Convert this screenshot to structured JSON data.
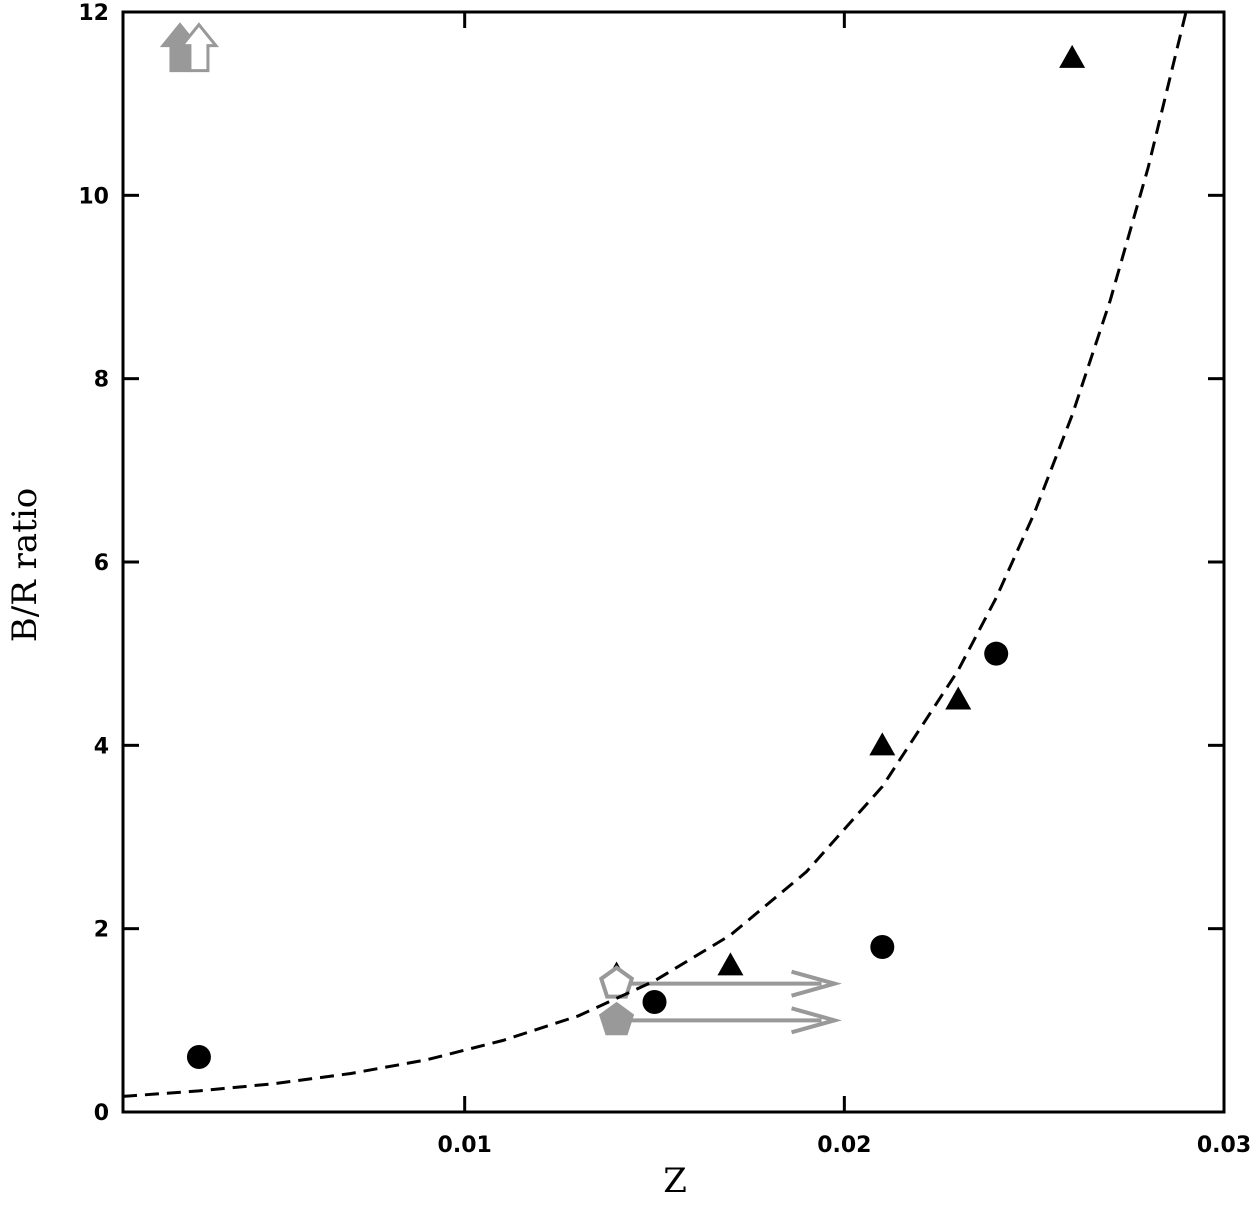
{
  "chart_data": {
    "type": "scatter",
    "x_label": "Z",
    "y_label": "B/R ratio",
    "xlim": [
      0.001,
      0.03
    ],
    "ylim": [
      0,
      12
    ],
    "xticks": [
      0.01,
      0.02,
      0.03
    ],
    "yticks": [
      0,
      2,
      4,
      6,
      8,
      10,
      12
    ],
    "series": [
      {
        "marker": "circle",
        "color": "#000000",
        "filled": true,
        "x": [
          0.003,
          0.015,
          0.021,
          0.024
        ],
        "values": [
          0.6,
          1.2,
          1.8,
          5.0
        ]
      },
      {
        "marker": "triangle",
        "color": "#000000",
        "filled": true,
        "x": [
          0.014,
          0.017,
          0.021,
          0.023,
          0.026
        ],
        "values": [
          1.5,
          1.6,
          4.0,
          4.5,
          11.5
        ]
      },
      {
        "marker": "pentagon-limit",
        "color": "#999999",
        "filled": false,
        "x": [
          0.014
        ],
        "values": [
          1.4
        ]
      },
      {
        "marker": "pentagon-limit",
        "color": "#999999",
        "filled": true,
        "x": [
          0.014
        ],
        "values": [
          1.0
        ]
      },
      {
        "marker": "up-arrow",
        "color": "#999999",
        "filled": true,
        "x": [
          0.0025
        ],
        "values": [
          11.6
        ]
      },
      {
        "marker": "up-arrow",
        "color": "#999999",
        "filled": false,
        "x": [
          0.003
        ],
        "values": [
          11.6
        ]
      },
      {
        "marker": "line",
        "color": "#000000",
        "dashed": true,
        "x": [
          0.001,
          0.003,
          0.005,
          0.007,
          0.009,
          0.011,
          0.013,
          0.015,
          0.017,
          0.019,
          0.021,
          0.023,
          0.024,
          0.025,
          0.026,
          0.027,
          0.028,
          0.029
        ],
        "values": [
          0.17,
          0.23,
          0.31,
          0.42,
          0.57,
          0.78,
          1.05,
          1.43,
          1.93,
          2.62,
          3.55,
          4.82,
          5.61,
          6.53,
          7.6,
          8.85,
          10.3,
          12.0
        ]
      }
    ]
  }
}
